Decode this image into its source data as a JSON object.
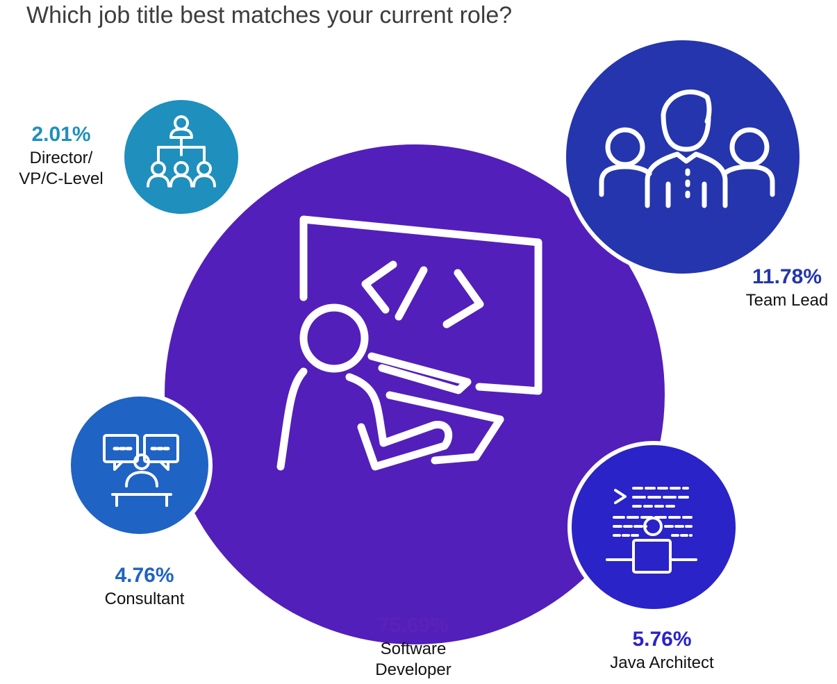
{
  "title": "Which job title best matches your current role?",
  "chart_data": {
    "type": "bubble",
    "title": "Which job title best matches your current role?",
    "categories": [
      "Software Developer",
      "Team Lead",
      "Java Architect",
      "Consultant",
      "Director/ VP/C-Level"
    ],
    "series": [
      {
        "values": [
          75.69,
          11.78,
          5.76,
          4.76,
          2.01
        ]
      }
    ],
    "items": [
      {
        "key": "software-developer",
        "value": 75.69,
        "pct_text": "75.69%",
        "label_lines": [
          "Software",
          "Developer"
        ],
        "color": "#531fba",
        "icon": "developer-at-monitor-icon"
      },
      {
        "key": "team-lead",
        "value": 11.78,
        "pct_text": "11.78%",
        "label_lines": [
          "Team Lead"
        ],
        "color": "#2435ad",
        "icon": "team-icon"
      },
      {
        "key": "java-architect",
        "value": 5.76,
        "pct_text": "5.76%",
        "label_lines": [
          "Java Architect"
        ],
        "color": "#2a23c8",
        "icon": "coder-at-laptop-icon"
      },
      {
        "key": "consultant",
        "value": 4.76,
        "pct_text": "4.76%",
        "label_lines": [
          "Consultant"
        ],
        "color": "#1f63c4",
        "icon": "consultant-icon"
      },
      {
        "key": "director",
        "value": 2.01,
        "pct_text": "2.01%",
        "label_lines": [
          "Director/",
          "VP/C-Level"
        ],
        "color": "#1f8fbd",
        "icon": "org-chart-icon"
      }
    ],
    "legend": "none",
    "grid": false
  }
}
